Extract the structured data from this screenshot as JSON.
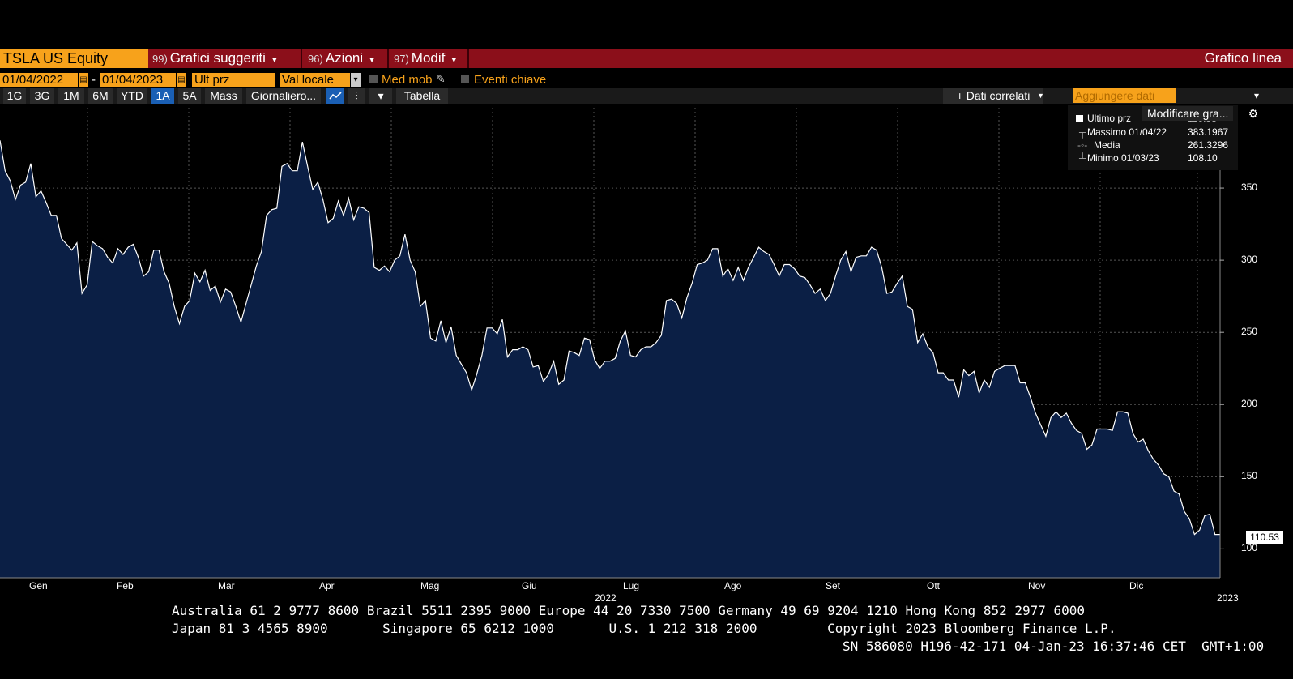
{
  "header": {
    "ticker": "TSLA US Equity",
    "menus": [
      {
        "num": "99)",
        "label": "Grafici suggeriti"
      },
      {
        "num": "96)",
        "label": "Azioni"
      },
      {
        "num": "97)",
        "label": "Modif"
      }
    ],
    "chart_type": "Grafico linea"
  },
  "controls": {
    "date_from": "01/04/2022",
    "date_to": "01/04/2023",
    "dash": "-",
    "field": "Ult prz",
    "currency": "Val locale",
    "moving_avg": "Med mob",
    "key_events": "Eventi chiave"
  },
  "toolbar": {
    "periods": [
      "1G",
      "3G",
      "1M",
      "6M",
      "YTD",
      "1A",
      "5A",
      "Mass"
    ],
    "active_period": "1A",
    "frequency": "Giornaliero...",
    "table": "Tabella",
    "related": "+ Dati correlati",
    "add_data_placeholder": "Aggiungere dati",
    "modify": "Modificare gra..."
  },
  "legend": {
    "last_label": "Ultimo prz",
    "last_value": "110.53",
    "high_label": "Massimo 01/04/22",
    "high_value": "383.1967",
    "avg_label": "Media",
    "avg_value": "261.3296",
    "low_label": "Minimo 01/03/23",
    "low_value": "108.10"
  },
  "last_price_tag": "110.53",
  "year_labels": {
    "mid": "2022",
    "end": "2023"
  },
  "footer": {
    "line1": "Australia 61 2 9777 8600 Brazil 5511 2395 9000 Europe 44 20 7330 7500 Germany 49 69 9204 1210 Hong Kong 852 2977 6000",
    "line2": "Japan 81 3 4565 8900       Singapore 65 6212 1000       U.S. 1 212 318 2000         Copyright 2023 Bloomberg Finance L.P.",
    "line3": "SN 586080 H196-42-171 04-Jan-23 16:37:46 CET  GMT+1:00"
  },
  "colors": {
    "accent": "#f7a21b",
    "command_bar": "#8b0f1a",
    "area_fill": "#0b1f45",
    "line": "#ffffff"
  },
  "chart_data": {
    "type": "area",
    "ylim": [
      80,
      400
    ],
    "yticks": [
      100,
      150,
      200,
      250,
      300,
      350
    ],
    "months": [
      "Gen",
      "Feb",
      "Mar",
      "Apr",
      "Mag",
      "Giu",
      "Lug",
      "Ago",
      "Set",
      "Ott",
      "Nov",
      "Dic"
    ],
    "series": [
      {
        "values": [
          383,
          362,
          355,
          342,
          352,
          354,
          367,
          344,
          348,
          340,
          331,
          331,
          315,
          311,
          307,
          312,
          277,
          283,
          313,
          310,
          308,
          302,
          298,
          308,
          304,
          309,
          311,
          302,
          289,
          292,
          307,
          307,
          292,
          284,
          268,
          256,
          268,
          272,
          291,
          285,
          293,
          279,
          282,
          271,
          280,
          278,
          268,
          257,
          270,
          283,
          296,
          306,
          331,
          335,
          336,
          365,
          367,
          362,
          362,
          382,
          365,
          349,
          354,
          342,
          326,
          329,
          341,
          331,
          343,
          328,
          337,
          336,
          333,
          295,
          293,
          296,
          292,
          300,
          303,
          318,
          300,
          292,
          268,
          272,
          246,
          244,
          258,
          243,
          254,
          234,
          228,
          222,
          210,
          221,
          234,
          253,
          253,
          249,
          259,
          233,
          238,
          238,
          240,
          238,
          226,
          227,
          216,
          221,
          230,
          214,
          217,
          237,
          236,
          234,
          246,
          245,
          231,
          225,
          230,
          230,
          232,
          244,
          251,
          234,
          233,
          238,
          240,
          240,
          243,
          248,
          272,
          273,
          270,
          260,
          274,
          284,
          297,
          298,
          300,
          308,
          308,
          289,
          294,
          286,
          295,
          286,
          295,
          302,
          309,
          306,
          304,
          297,
          289,
          297,
          297,
          294,
          289,
          288,
          283,
          277,
          280,
          272,
          277,
          289,
          300,
          306,
          292,
          302,
          303,
          303,
          309,
          307,
          295,
          277,
          278,
          284,
          289,
          268,
          266,
          243,
          249,
          240,
          236,
          222,
          222,
          217,
          217,
          205,
          224,
          220,
          223,
          208,
          217,
          212,
          223,
          225,
          227,
          227,
          227,
          215,
          215,
          205,
          194,
          186,
          178,
          191,
          195,
          191,
          194,
          187,
          182,
          180,
          169,
          172,
          183,
          183,
          183,
          182,
          195,
          195,
          194,
          180,
          174,
          176,
          168,
          162,
          158,
          152,
          150,
          140,
          138,
          126,
          121,
          110,
          113,
          123,
          124,
          110,
          110
        ]
      }
    ]
  }
}
